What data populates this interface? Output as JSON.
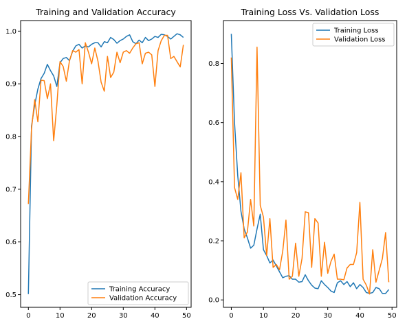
{
  "chart_data": [
    {
      "type": "line",
      "title": "Training and Validation Accuracy",
      "xlabel": "",
      "ylabel": "",
      "xlim": [
        -2.45,
        51.45
      ],
      "ylim": [
        0.476,
        1.02
      ],
      "xticks": [
        0,
        10,
        20,
        30,
        40,
        50
      ],
      "yticks": [
        0.5,
        0.6,
        0.7,
        0.8,
        0.9,
        1.0
      ],
      "ytick_labels": [
        "0.5",
        "0.6",
        "0.7",
        "0.8",
        "0.9",
        "1.0"
      ],
      "grid": false,
      "legend": "lower-right",
      "x": [
        0,
        1,
        2,
        3,
        4,
        5,
        6,
        7,
        8,
        9,
        10,
        11,
        12,
        13,
        14,
        15,
        16,
        17,
        18,
        19,
        20,
        21,
        22,
        23,
        24,
        25,
        26,
        27,
        28,
        29,
        30,
        31,
        32,
        33,
        34,
        35,
        36,
        37,
        38,
        39,
        40,
        41,
        42,
        43,
        44,
        45,
        46,
        47,
        48,
        49
      ],
      "series": [
        {
          "name": "Training Accuracy",
          "color": "#1f77b4",
          "values": [
            0.501,
            0.82,
            0.86,
            0.89,
            0.91,
            0.92,
            0.937,
            0.925,
            0.915,
            0.895,
            0.94,
            0.948,
            0.95,
            0.944,
            0.962,
            0.972,
            0.975,
            0.968,
            0.972,
            0.97,
            0.975,
            0.978,
            0.978,
            0.97,
            0.98,
            0.978,
            0.988,
            0.984,
            0.977,
            0.982,
            0.985,
            0.99,
            0.993,
            0.98,
            0.976,
            0.983,
            0.978,
            0.988,
            0.982,
            0.985,
            0.99,
            0.988,
            0.994,
            0.993,
            0.99,
            0.985,
            0.99,
            0.995,
            0.993,
            0.988
          ]
        },
        {
          "name": "Validation Accuracy",
          "color": "#ff7f0e",
          "values": [
            0.672,
            0.815,
            0.87,
            0.828,
            0.907,
            0.906,
            0.872,
            0.9,
            0.792,
            0.86,
            0.942,
            0.933,
            0.905,
            0.944,
            0.963,
            0.96,
            0.965,
            0.9,
            0.978,
            0.96,
            0.938,
            0.968,
            0.943,
            0.903,
            0.886,
            0.952,
            0.912,
            0.922,
            0.96,
            0.94,
            0.96,
            0.963,
            0.958,
            0.968,
            0.976,
            0.978,
            0.938,
            0.958,
            0.96,
            0.955,
            0.895,
            0.963,
            0.982,
            0.992,
            0.992,
            0.948,
            0.952,
            0.942,
            0.932,
            0.974
          ]
        }
      ]
    },
    {
      "type": "line",
      "title": "Training Loss Vs. Validation Loss",
      "xlabel": "",
      "ylabel": "",
      "xlim": [
        -2.45,
        51.45
      ],
      "ylim": [
        -0.025,
        0.945
      ],
      "xticks": [
        0,
        10,
        20,
        30,
        40,
        50
      ],
      "yticks": [
        0.0,
        0.2,
        0.4,
        0.6,
        0.8
      ],
      "ytick_labels": [
        "0.0",
        "0.2",
        "0.4",
        "0.6",
        "0.8"
      ],
      "grid": false,
      "legend": "top-right",
      "x": [
        0,
        1,
        2,
        3,
        4,
        5,
        6,
        7,
        8,
        9,
        10,
        11,
        12,
        13,
        14,
        15,
        16,
        17,
        18,
        19,
        20,
        21,
        22,
        23,
        24,
        25,
        26,
        27,
        28,
        29,
        30,
        31,
        32,
        33,
        34,
        35,
        36,
        37,
        38,
        39,
        40,
        41,
        42,
        43,
        44,
        45,
        46,
        47,
        48,
        49
      ],
      "series": [
        {
          "name": "Training Loss",
          "color": "#1f77b4",
          "values": [
            0.9,
            0.6,
            0.42,
            0.3,
            0.24,
            0.21,
            0.175,
            0.185,
            0.24,
            0.29,
            0.17,
            0.15,
            0.125,
            0.135,
            0.115,
            0.095,
            0.075,
            0.08,
            0.082,
            0.07,
            0.07,
            0.06,
            0.062,
            0.085,
            0.065,
            0.05,
            0.04,
            0.038,
            0.065,
            0.052,
            0.042,
            0.03,
            0.025,
            0.058,
            0.065,
            0.052,
            0.062,
            0.045,
            0.058,
            0.038,
            0.052,
            0.042,
            0.025,
            0.022,
            0.025,
            0.042,
            0.038,
            0.022,
            0.022,
            0.035
          ]
        },
        {
          "name": "Validation Loss",
          "color": "#ff7f0e",
          "values": [
            0.82,
            0.38,
            0.34,
            0.43,
            0.21,
            0.23,
            0.34,
            0.25,
            0.855,
            0.32,
            0.28,
            0.15,
            0.275,
            0.11,
            0.12,
            0.102,
            0.165,
            0.27,
            0.07,
            0.08,
            0.192,
            0.08,
            0.14,
            0.298,
            0.295,
            0.11,
            0.275,
            0.26,
            0.08,
            0.195,
            0.09,
            0.13,
            0.155,
            0.07,
            0.07,
            0.068,
            0.108,
            0.12,
            0.12,
            0.16,
            0.33,
            0.07,
            0.05,
            0.02,
            0.17,
            0.06,
            0.1,
            0.14,
            0.228,
            0.06
          ]
        }
      ]
    }
  ]
}
